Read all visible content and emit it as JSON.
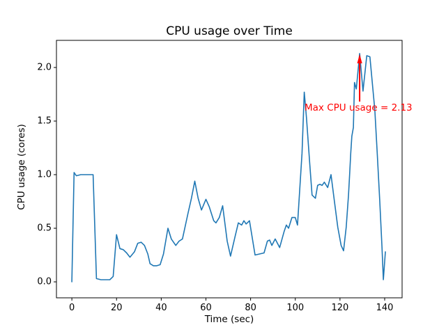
{
  "chart_data": {
    "type": "line",
    "title": "CPU usage over Time",
    "xlabel": "Time (sec)",
    "ylabel": "CPU usage (cores)",
    "x": [
      0,
      1,
      2,
      4,
      6,
      8,
      9.5,
      11,
      13,
      15,
      17,
      18.5,
      20,
      21.5,
      23,
      24.5,
      26,
      28,
      29.5,
      31,
      32.5,
      34,
      35,
      36.5,
      38,
      39.5,
      41,
      43,
      44.5,
      46.5,
      48,
      49.5,
      52,
      53.5,
      55,
      56.5,
      58,
      60,
      61.5,
      63.5,
      64.5,
      66,
      67.5,
      69.5,
      71,
      73,
      74.5,
      76,
      77,
      78,
      79.5,
      82,
      84,
      86,
      87.5,
      88.5,
      89.5,
      91,
      93,
      95,
      96,
      97,
      98.5,
      100,
      101,
      103,
      104,
      105,
      106.5,
      107.5,
      109,
      110,
      111,
      112,
      113,
      114.5,
      116,
      117.5,
      119,
      120.5,
      121.6,
      122.8,
      123.8,
      124.3,
      124.8,
      125.3,
      126,
      126.5,
      127.3,
      128.8,
      130.3,
      132,
      133.4,
      135.6,
      136.7,
      137.8,
      138.8,
      139.4,
      140.3
    ],
    "values": [
      0.0,
      1.02,
      0.99,
      1.0,
      1.0,
      1.0,
      1.0,
      0.03,
      0.02,
      0.02,
      0.02,
      0.05,
      0.44,
      0.31,
      0.3,
      0.27,
      0.23,
      0.28,
      0.36,
      0.37,
      0.34,
      0.26,
      0.17,
      0.15,
      0.15,
      0.16,
      0.26,
      0.5,
      0.4,
      0.34,
      0.38,
      0.4,
      0.64,
      0.78,
      0.94,
      0.78,
      0.67,
      0.77,
      0.7,
      0.57,
      0.55,
      0.6,
      0.71,
      0.38,
      0.24,
      0.42,
      0.55,
      0.53,
      0.57,
      0.54,
      0.57,
      0.25,
      0.26,
      0.27,
      0.38,
      0.39,
      0.34,
      0.4,
      0.32,
      0.47,
      0.53,
      0.5,
      0.6,
      0.6,
      0.53,
      1.2,
      1.77,
      1.53,
      1.09,
      0.81,
      0.78,
      0.9,
      0.91,
      0.9,
      0.93,
      0.88,
      1.0,
      0.75,
      0.51,
      0.34,
      0.29,
      0.51,
      0.81,
      1.0,
      1.2,
      1.36,
      1.44,
      1.86,
      1.8,
      2.13,
      1.78,
      2.11,
      2.1,
      1.6,
      1.19,
      0.76,
      0.33,
      0.02,
      0.28
    ],
    "xticks": [
      0,
      20,
      40,
      60,
      80,
      100,
      120,
      140
    ],
    "xtick_labels": [
      "0",
      "20",
      "40",
      "60",
      "80",
      "100",
      "120",
      "140"
    ],
    "yticks": [
      0.0,
      0.5,
      1.0,
      1.5,
      2.0
    ],
    "ytick_labels": [
      "0.0",
      "0.5",
      "1.0",
      "1.5",
      "2.0"
    ],
    "xlim": [
      -6.9,
      147.8
    ],
    "ylim": [
      -0.149,
      2.253
    ],
    "grid": false,
    "legend": null,
    "line_color": "#1f77b4",
    "spine_color": "#000000",
    "annotation": {
      "text": "Max CPU usage = 2.13",
      "color": "#ff0000",
      "max_value": 2.13,
      "arrow_x": 128.8,
      "arrow_y": 2.13
    }
  }
}
